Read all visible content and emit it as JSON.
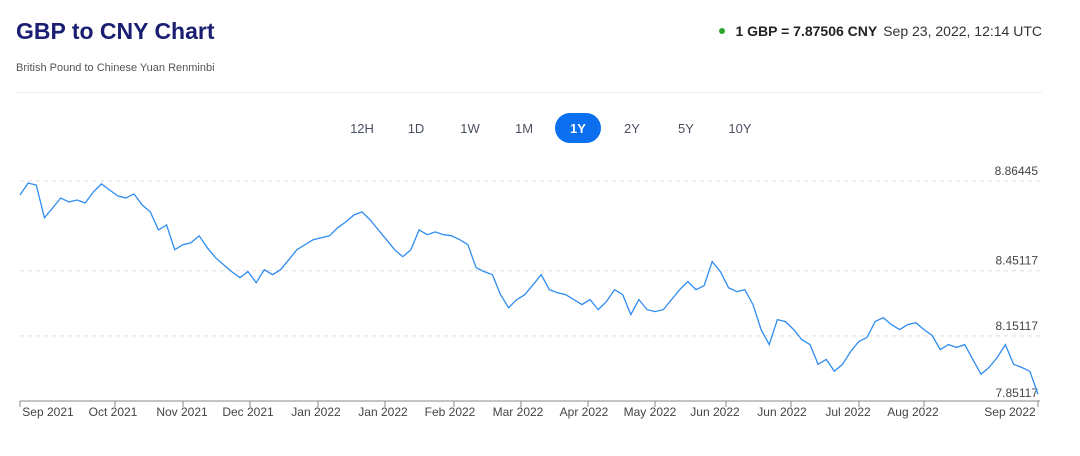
{
  "header": {
    "title": "GBP to CNY Chart",
    "subtitle": "British Pound to Chinese Yuan Renminbi",
    "rate": "1 GBP = 7.87506 CNY",
    "timestamp": "Sep 23, 2022, 12:14 UTC",
    "status_color": "#2ca52c"
  },
  "ranges": [
    {
      "label": "12H"
    },
    {
      "label": "1D"
    },
    {
      "label": "1W"
    },
    {
      "label": "1M"
    },
    {
      "label": "1Y",
      "active": true
    },
    {
      "label": "2Y"
    },
    {
      "label": "5Y"
    },
    {
      "label": "10Y"
    }
  ],
  "chart_data": {
    "type": "line",
    "title": "GBP to CNY",
    "series": [
      {
        "name": "GBP/CNY",
        "color": "#2f8cf0",
        "values": [
          8.8,
          8.855,
          8.846,
          8.695,
          8.74,
          8.786,
          8.768,
          8.777,
          8.763,
          8.814,
          8.851,
          8.823,
          8.796,
          8.786,
          8.805,
          8.754,
          8.722,
          8.639,
          8.662,
          8.548,
          8.571,
          8.58,
          8.612,
          8.557,
          8.511,
          8.479,
          8.447,
          8.419,
          8.447,
          8.396,
          8.456,
          8.433,
          8.456,
          8.502,
          8.548,
          8.571,
          8.594,
          8.603,
          8.612,
          8.649,
          8.676,
          8.708,
          8.722,
          8.685,
          8.639,
          8.594,
          8.548,
          8.516,
          8.548,
          8.639,
          8.617,
          8.63,
          8.617,
          8.612,
          8.594,
          8.571,
          8.465,
          8.447,
          8.433,
          8.341,
          8.281,
          8.318,
          8.341,
          8.387,
          8.433,
          8.364,
          8.35,
          8.341,
          8.318,
          8.295,
          8.318,
          8.272,
          8.309,
          8.364,
          8.341,
          8.249,
          8.318,
          8.272,
          8.263,
          8.272,
          8.318,
          8.364,
          8.401,
          8.364,
          8.382,
          8.493,
          8.447,
          8.373,
          8.355,
          8.364,
          8.295,
          8.18,
          8.111,
          8.226,
          8.217,
          8.18,
          8.134,
          8.111,
          8.02,
          8.043,
          7.988,
          8.02,
          8.079,
          8.125,
          8.144,
          8.217,
          8.235,
          8.203,
          8.18,
          8.203,
          8.212,
          8.18,
          8.153,
          8.088,
          8.111,
          8.098,
          8.111,
          8.043,
          7.974,
          8.006,
          8.052,
          8.111,
          8.02,
          8.006,
          7.988,
          7.882
        ]
      }
    ],
    "x_tick_labels": [
      "Sep 2021",
      "Oct 2021",
      "Nov 2021",
      "Dec 2021",
      "Jan 2022",
      "Jan 2022",
      "Feb 2022",
      "Mar 2022",
      "Apr 2022",
      "May 2022",
      "Jun 2022",
      "Jun 2022",
      "Jul 2022",
      "Aug 2022",
      "Sep 2022"
    ],
    "y_ticks": [
      "8.86445",
      "8.45117",
      "8.15117",
      "7.85117"
    ],
    "ylim": [
      7.85117,
      8.86445
    ],
    "grid": true,
    "legend": "none"
  }
}
